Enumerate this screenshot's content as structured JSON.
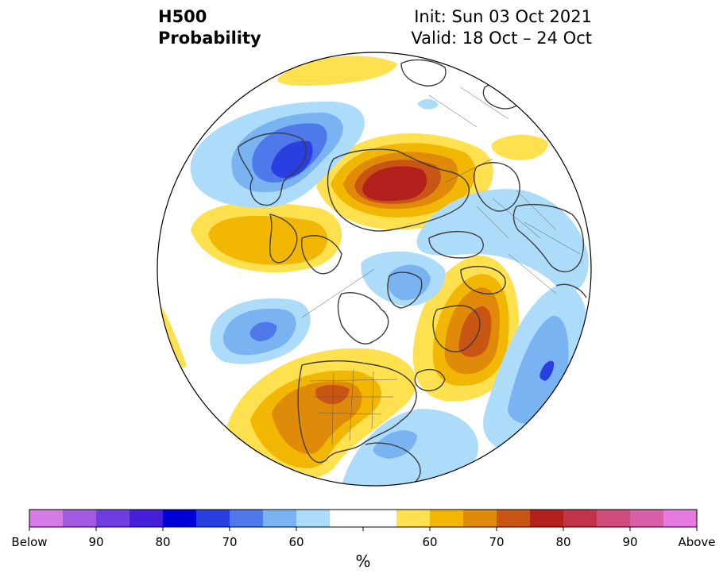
{
  "title": {
    "left_line1": "H500",
    "left_line2": "Probability",
    "right_line1": "Init: Sun 03 Oct 2021",
    "right_line2": "Valid: 18 Oct – 24 Oct"
  },
  "colorbar": {
    "units": "%",
    "colors": [
      "#d67ae8",
      "#a45ae0",
      "#6f3ee0",
      "#4620d8",
      "#0000d8",
      "#2a3fe0",
      "#4f79ea",
      "#79b3f1",
      "#addcfb",
      "#ffffff",
      "#ffffff",
      "#ffe04e",
      "#f2b705",
      "#e08a0a",
      "#c85514",
      "#b3211f",
      "#c0334b",
      "#cf4d7c",
      "#d860a8",
      "#e77ae0"
    ],
    "tick_labels": [
      "Below",
      "90",
      "80",
      "70",
      "60",
      "60",
      "70",
      "80",
      "90",
      "Above"
    ]
  },
  "colors": {
    "land_outline": "#3c3c3c",
    "map_background": "#fefffe"
  }
}
